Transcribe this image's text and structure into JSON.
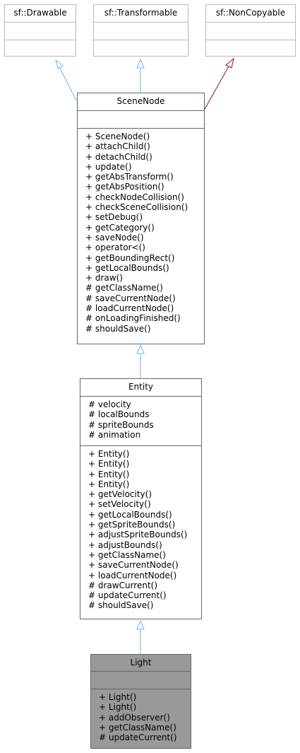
{
  "diagram": {
    "colors": {
      "node_border": "#666666",
      "node_border_faint": "#bbbbbb",
      "highlight_fill": "#999999",
      "edge_blue": "#63b8ff",
      "edge_darkred": "#8b1a1a"
    },
    "nodes": {
      "drawable": {
        "title": "sf::Drawable",
        "attributes": [],
        "methods": []
      },
      "transformable": {
        "title": "sf::Transformable",
        "attributes": [],
        "methods": []
      },
      "noncopyable": {
        "title": "sf::NonCopyable",
        "attributes": [],
        "methods": []
      },
      "scenenode": {
        "title": "SceneNode",
        "attributes": [],
        "methods": [
          "+ SceneNode()",
          "+ attachChild()",
          "+ detachChild()",
          "+ update()",
          "+ getAbsTransform()",
          "+ getAbsPosition()",
          "+ checkNodeCollision()",
          "+ checkSceneCollision()",
          "+ setDebug()",
          "+ getCategory()",
          "+ saveNode()",
          "+ operator<()",
          "+ getBoundingRect()",
          "+ getLocalBounds()",
          "+ draw()",
          "# getClassName()",
          "# saveCurrentNode()",
          "# loadCurrentNode()",
          "# onLoadingFinished()",
          "# shouldSave()"
        ]
      },
      "entity": {
        "title": "Entity",
        "attributes": [
          "# velocity",
          "# localBounds",
          "# spriteBounds",
          "# animation"
        ],
        "methods": [
          "+ Entity()",
          "+ Entity()",
          "+ Entity()",
          "+ Entity()",
          "+ getVelocity()",
          "+ setVelocity()",
          "+ getLocalBounds()",
          "+ getSpriteBounds()",
          "+ adjustSpriteBounds()",
          "+ adjustBounds()",
          "+ getClassName()",
          "+ saveCurrentNode()",
          "+ loadCurrentNode()",
          "# drawCurrent()",
          "# updateCurrent()",
          "# shouldSave()"
        ]
      },
      "light": {
        "title": "Light",
        "attributes": [],
        "methods": [
          "+ Light()",
          "+ Light()",
          "+ addObserver()",
          "+ getClassName()",
          "# updateCurrent()"
        ]
      }
    }
  }
}
